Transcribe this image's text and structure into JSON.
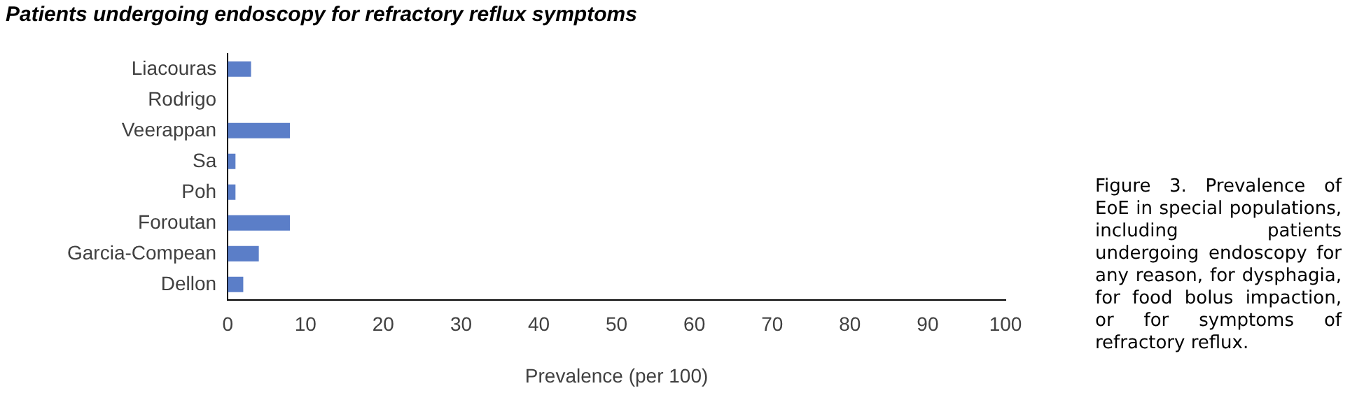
{
  "chart_data": {
    "type": "bar",
    "orientation": "horizontal",
    "title": "Patients undergoing endoscopy for refractory reflux symptoms",
    "xlabel": "Prevalence (per 100)",
    "categories": [
      "Liacouras",
      "Rodrigo",
      "Veerappan",
      "Sa",
      "Poh",
      "Foroutan",
      "Garcia-Compean",
      "Dellon"
    ],
    "values": [
      3,
      0,
      8,
      1,
      1,
      8,
      4,
      2
    ],
    "color": "#5b7ec8",
    "xlim": [
      0,
      100
    ],
    "xticks": [
      0,
      10,
      20,
      30,
      40,
      50,
      60,
      70,
      80,
      90,
      100
    ],
    "grid": false,
    "legend": false,
    "annotations": [
      "Figure 3. Prevalence of EoE in special populations, including patients undergoing endoscopy for any reason, for dysphagia, for food bolus impaction, or for symptoms of refractory reflux."
    ]
  }
}
